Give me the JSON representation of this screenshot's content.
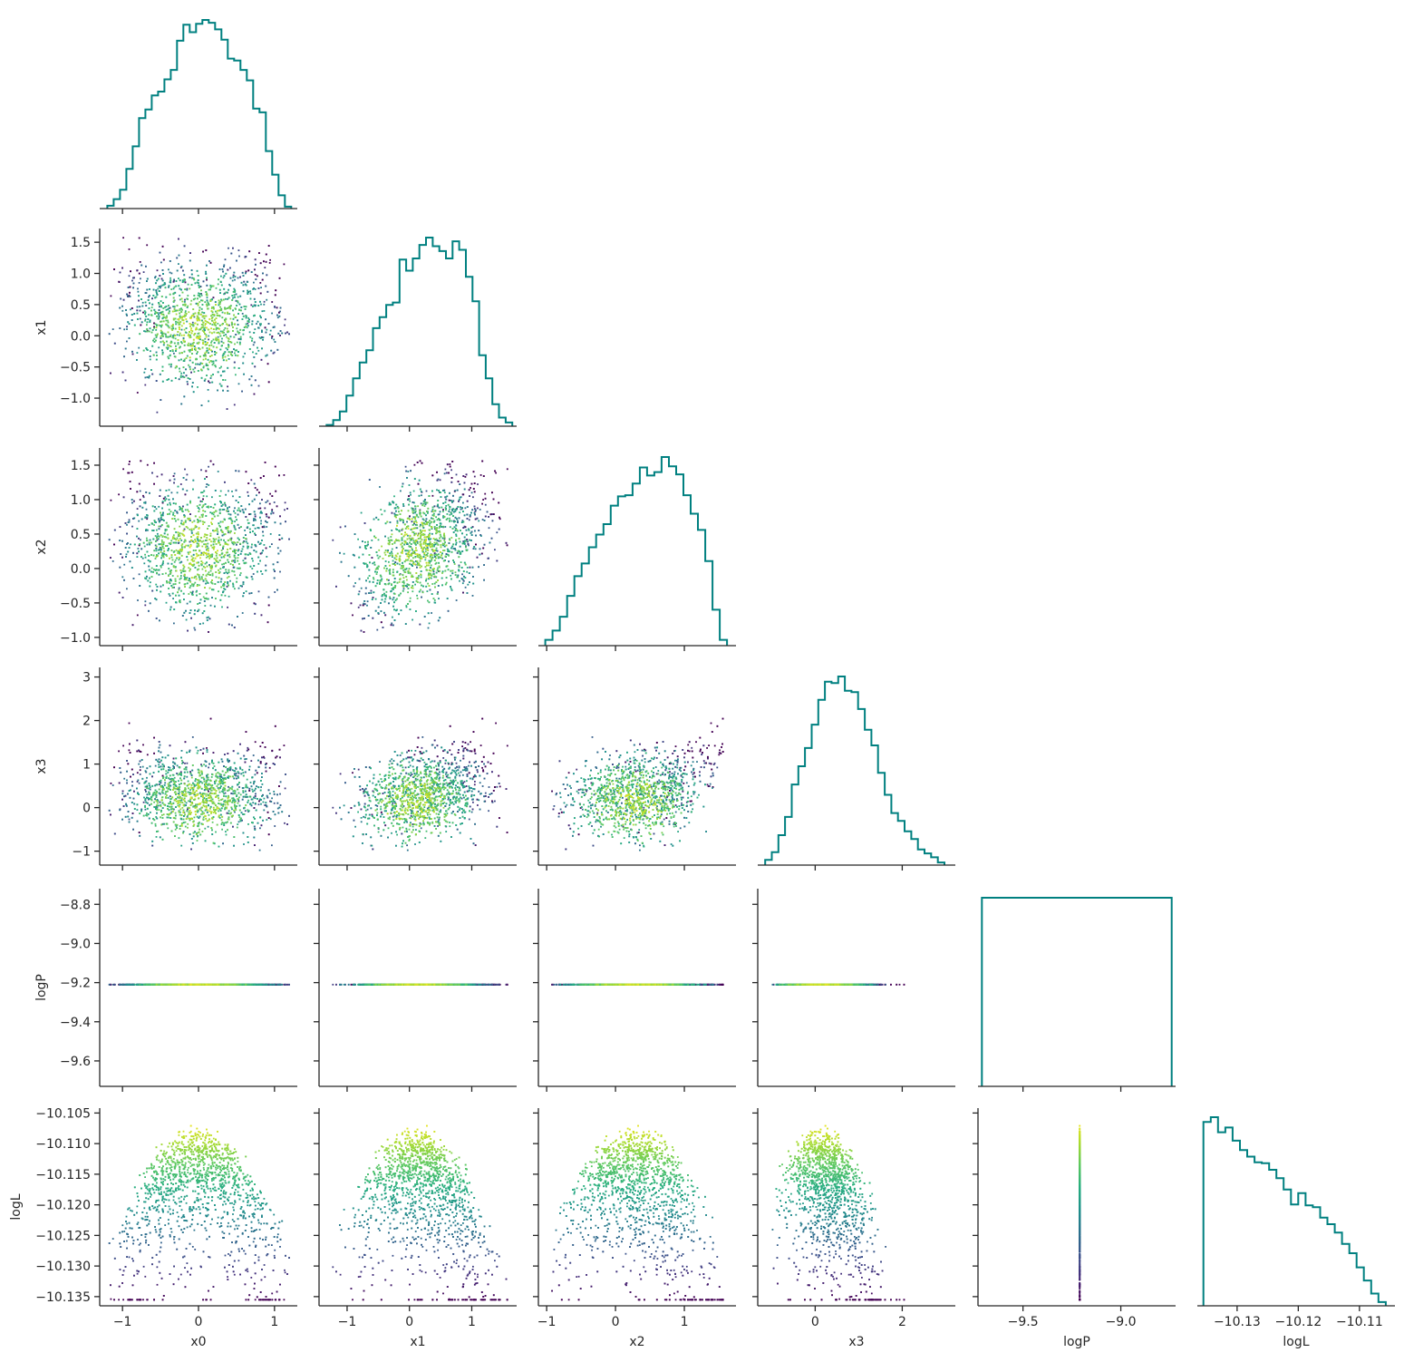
{
  "chart_data": {
    "type": "corner_plot",
    "variables": [
      "x0",
      "x1",
      "x2",
      "x3",
      "logP",
      "logL"
    ],
    "axis_labels": [
      "x0",
      "x1",
      "x2",
      "x3",
      "logP",
      "logL"
    ],
    "ranges": [
      [
        -1.3,
        1.3
      ],
      [
        -1.45,
        1.72
      ],
      [
        -1.12,
        1.75
      ],
      [
        -1.32,
        3.22
      ],
      [
        -9.73,
        -8.72
      ],
      [
        -10.1365,
        -10.1042
      ]
    ],
    "ticks": [
      {
        "values": [
          -1,
          0,
          1
        ],
        "labels": [
          "−1",
          "0",
          "1"
        ]
      },
      {
        "values": [
          -1,
          -0.5,
          0,
          0.5,
          1,
          1.5
        ],
        "labels": [
          "−1.0",
          "−0.5",
          "0.0",
          "0.5",
          "1.0",
          "1.5"
        ]
      },
      {
        "values": [
          -1,
          -0.5,
          0,
          0.5,
          1,
          1.5
        ],
        "labels": [
          "−1.0",
          "−0.5",
          "0.0",
          "0.5",
          "1.0",
          "1.5"
        ]
      },
      {
        "values": [
          -1,
          0,
          1,
          2,
          3
        ],
        "labels": [
          "−1",
          "0",
          "1",
          "2",
          "3"
        ]
      },
      {
        "values": [
          -9.6,
          -9.4,
          -9.2,
          -9.0,
          -8.8
        ],
        "labels": [
          "−9.6",
          "−9.4",
          "−9.2",
          "−9.0",
          "−8.8"
        ]
      },
      {
        "values": [
          -10.135,
          -10.13,
          -10.125,
          -10.12,
          -10.115,
          -10.11,
          -10.105
        ],
        "labels": [
          "−10.135",
          "−10.130",
          "−10.125",
          "−10.120",
          "−10.115",
          "−10.110",
          "−10.105"
        ]
      }
    ],
    "bottom_ticks": [
      {
        "values": [
          -1,
          0,
          1
        ],
        "labels": [
          "−1",
          "0",
          "1"
        ]
      },
      {
        "values": [
          -1,
          0,
          1
        ],
        "labels": [
          "−1",
          "0",
          "1"
        ]
      },
      {
        "values": [
          -1,
          0,
          1
        ],
        "labels": [
          "−1",
          "0",
          "1"
        ]
      },
      {
        "values": [
          0,
          2
        ],
        "labels": [
          "0",
          "2"
        ]
      },
      {
        "values": [
          -9.5,
          -9.0
        ],
        "labels": [
          "−9.5",
          "−9.0"
        ]
      },
      {
        "values": [
          -10.13,
          -10.12,
          -10.11
        ],
        "labels": [
          "−10.13",
          "−10.12",
          "−10.11"
        ]
      }
    ],
    "histograms": [
      {
        "edges_range": [
          -1.2,
          1.22
        ],
        "counts": [
          3,
          10,
          20,
          42,
          66,
          96,
          105,
          120,
          124,
          137,
          147,
          178,
          195,
          187,
          196,
          200,
          197,
          190,
          179,
          159,
          157,
          147,
          136,
          106,
          102,
          61,
          36,
          14,
          2
        ]
      },
      {
        "edges_range": [
          -1.33,
          1.65
        ],
        "counts": [
          1,
          5,
          12,
          25,
          39,
          52,
          62,
          80,
          89,
          99,
          101,
          136,
          127,
          137,
          148,
          154,
          147,
          143,
          137,
          151,
          144,
          122,
          102,
          58,
          39,
          18,
          7,
          3
        ]
      },
      {
        "edges_range": [
          -1.02,
          1.62
        ],
        "counts": [
          5,
          13,
          25,
          43,
          60,
          71,
          85,
          96,
          105,
          121,
          129,
          130,
          140,
          154,
          147,
          150,
          163,
          155,
          148,
          130,
          114,
          100,
          73,
          31,
          5
        ]
      },
      {
        "edges_range": [
          -1.15,
          2.97
        ],
        "counts": [
          4,
          10,
          23,
          37,
          62,
          76,
          90,
          108,
          127,
          141,
          140,
          145,
          134,
          133,
          120,
          104,
          92,
          71,
          54,
          40,
          34,
          26,
          20,
          12,
          9,
          6,
          2
        ]
      },
      {
        "edges_range": [
          -9.71,
          -8.74
        ],
        "counts": [
          1
        ]
      },
      {
        "edges_range": [
          -10.1355,
          -10.1057
        ],
        "counts": [
          196,
          201,
          185,
          190,
          176,
          166,
          159,
          153,
          152,
          145,
          136,
          124,
          108,
          120,
          107,
          105,
          94,
          87,
          78,
          66,
          56,
          41,
          27,
          13,
          4
        ]
      }
    ],
    "scatter_shape_params": {
      "points_per_panel": 2200,
      "logP_constant": -9.21,
      "logL_max": -10.106,
      "logL_min": -10.1355,
      "colormap": "viridis",
      "color_by": "logL"
    },
    "colors": {
      "histogram_line": "#008080",
      "axis": "#262626",
      "background": "#ffffff"
    },
    "colormap_stops": [
      "#440154",
      "#472d7b",
      "#3b528b",
      "#2c728e",
      "#21918c",
      "#28ae80",
      "#5ec962",
      "#addc30",
      "#fde725"
    ]
  }
}
